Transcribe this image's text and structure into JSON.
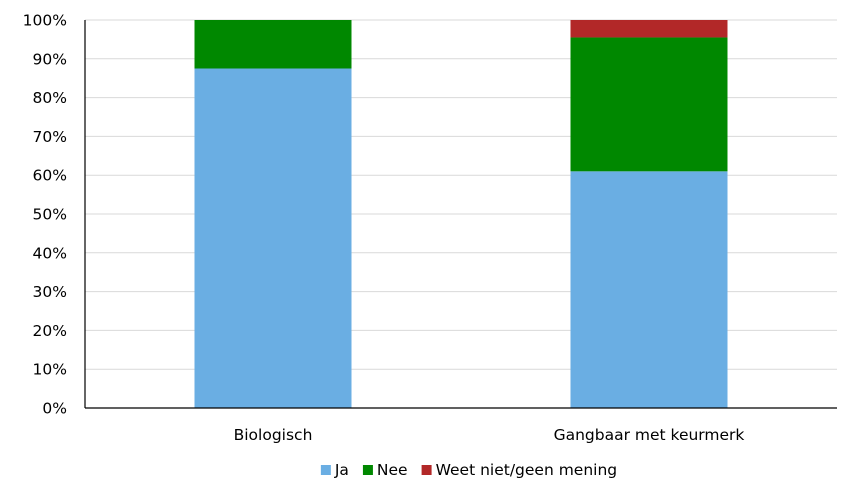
{
  "chart_data": {
    "type": "bar",
    "stacked": true,
    "categories": [
      "Biologisch",
      "Gangbaar met keurmerk"
    ],
    "series": [
      {
        "name": "Ja",
        "color": "#6aaee3",
        "values": [
          87.5,
          61.0
        ]
      },
      {
        "name": "Nee",
        "color": "#008800",
        "values": [
          12.5,
          34.5
        ]
      },
      {
        "name": "Weet niet/geen mening",
        "color": "#b22828",
        "values": [
          0.0,
          4.5
        ]
      }
    ],
    "yticks": [
      "0%",
      "10%",
      "20%",
      "30%",
      "40%",
      "50%",
      "60%",
      "70%",
      "80%",
      "90%",
      "100%"
    ],
    "ylim": [
      0,
      100
    ],
    "grid": true,
    "legend_position": "bottom"
  }
}
